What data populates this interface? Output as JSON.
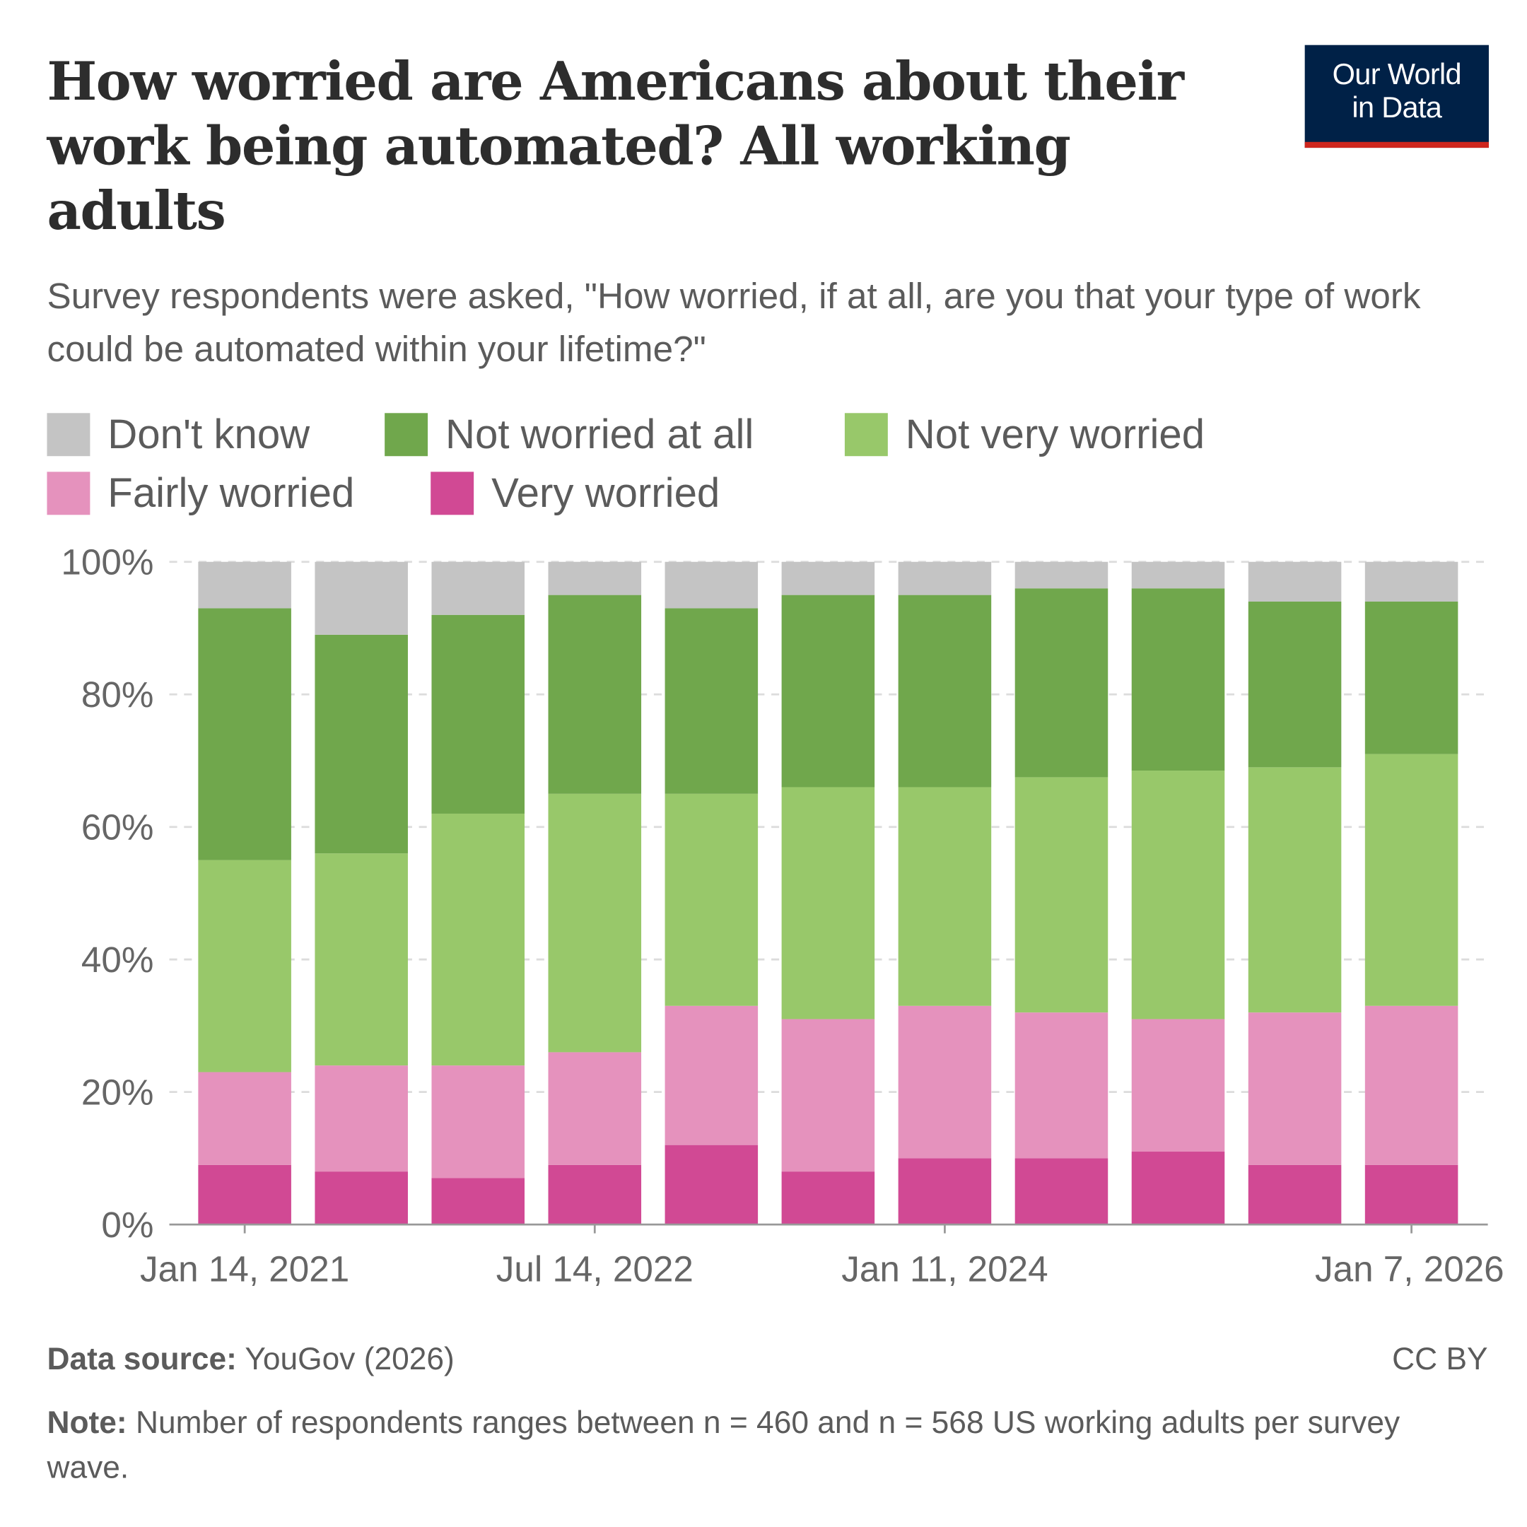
{
  "title": "How worried are Americans about their work being automated? All working adults",
  "subtitle": "Survey respondents were asked, \"How worried, if at all, are you that your type of work could be automated within your lifetime?\"",
  "logo": {
    "line1": "Our World",
    "line2": "in Data"
  },
  "footer": {
    "source_label": "Data source:",
    "source": "YouGov (2026)",
    "license": "CC BY",
    "note_label": "Note:",
    "note": "Number of respondents ranges between n = 460 and n = 568 US working adults per survey wave."
  },
  "chart_data": {
    "type": "bar",
    "stacked": true,
    "ylim": [
      0,
      100
    ],
    "yticks": [
      "0%",
      "20%",
      "40%",
      "60%",
      "80%",
      "100%"
    ],
    "grid": true,
    "legend_position": "top",
    "categories": [
      "Jan 14, 2021",
      "",
      "",
      "Jul 14, 2022",
      "",
      "",
      "Jan 11, 2024",
      "",
      "",
      "",
      "Jan 7, 2026"
    ],
    "series": [
      {
        "name": "Very worried",
        "color": "#d14994",
        "values": [
          9,
          8,
          7,
          9,
          12,
          8,
          10,
          10,
          11,
          9,
          9
        ]
      },
      {
        "name": "Fairly worried",
        "color": "#e592bd",
        "values": [
          14,
          16,
          17,
          17,
          21,
          23,
          23,
          22,
          20,
          23,
          24
        ]
      },
      {
        "name": "Not very worried",
        "color": "#98c86a",
        "values": [
          32,
          32,
          38,
          39,
          32,
          35,
          33,
          35.5,
          37.5,
          37,
          38
        ]
      },
      {
        "name": "Not worried at all",
        "color": "#70a74c",
        "values": [
          38,
          33,
          30,
          30,
          28,
          29,
          29,
          28.5,
          27.5,
          25,
          23
        ]
      },
      {
        "name": "Don't know",
        "color": "#c4c4c4",
        "values": [
          7,
          11,
          8,
          5,
          7,
          5,
          5,
          4,
          4,
          6,
          6
        ]
      }
    ],
    "legend_order": [
      "Don't know",
      "Not worried at all",
      "Not very worried",
      "Fairly worried",
      "Very worried"
    ]
  }
}
